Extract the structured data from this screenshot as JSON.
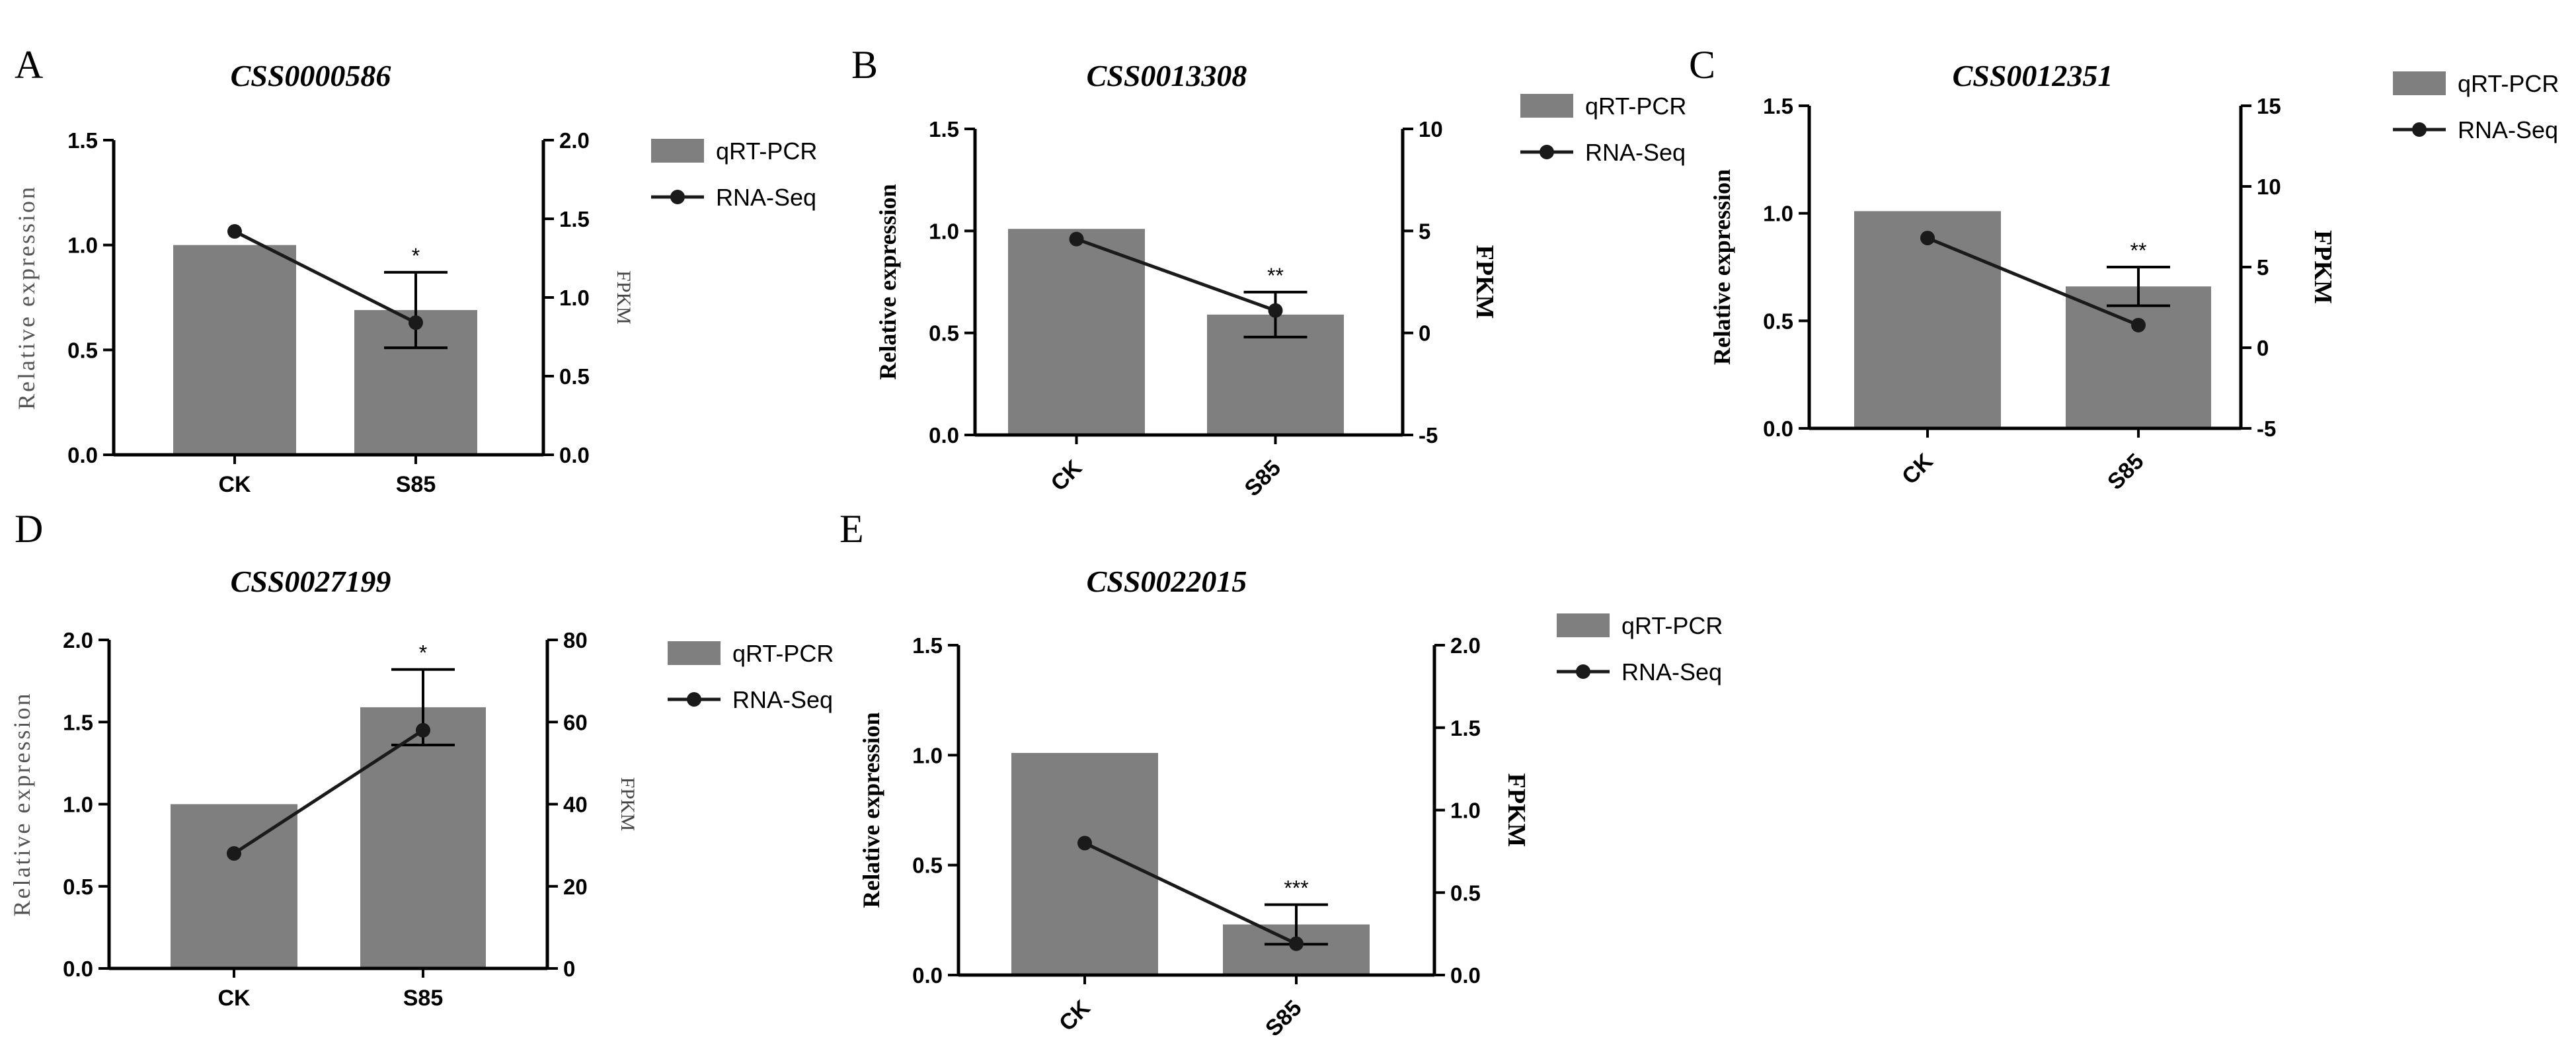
{
  "figure": {
    "colors": {
      "bar": "#7f7f7f",
      "line": "#1a1a1a",
      "axis": "#000000",
      "text": "#000000"
    },
    "legend_labels": {
      "bar": "qRT-PCR",
      "line": "RNA-Seq"
    }
  },
  "chart_data": [
    {
      "panel": "A",
      "type": "bar",
      "title": "CSS0000586",
      "categories": [
        "CK",
        "S85"
      ],
      "xlabel": "",
      "ylabel": "Relative expression",
      "ylabel2": "FPKM",
      "ylim": [
        0,
        1.5
      ],
      "y_ticks": [
        "0.0",
        "0.5",
        "1.0",
        "1.5"
      ],
      "y2lim": [
        0,
        2
      ],
      "y2_ticks": [
        "0.0",
        "0.5",
        "1.0",
        "1.5",
        "2.0"
      ],
      "series": [
        {
          "name": "qRT-PCR",
          "type": "bar",
          "axis": "left",
          "values": [
            1.0,
            0.69
          ],
          "error": [
            0,
            0.18
          ],
          "significance": [
            "",
            "*"
          ]
        },
        {
          "name": "RNA-Seq",
          "type": "line",
          "axis": "right",
          "values": [
            1.42,
            0.84
          ]
        }
      ]
    },
    {
      "panel": "B",
      "type": "bar",
      "title": "CSS0013308",
      "categories": [
        "CK",
        "S85"
      ],
      "xlabel": "",
      "ylabel": "Relative expression",
      "ylabel2": "FPKM",
      "ylim": [
        0,
        1.5
      ],
      "y_ticks": [
        "0.0",
        "0.5",
        "1.0",
        "1.5"
      ],
      "y2lim": [
        -5,
        10
      ],
      "y2_ticks": [
        "-5",
        "0",
        "5",
        "10"
      ],
      "series": [
        {
          "name": "qRT-PCR",
          "type": "bar",
          "axis": "left",
          "values": [
            1.01,
            0.59
          ],
          "error": [
            0,
            0.11
          ],
          "significance": [
            "",
            "**"
          ]
        },
        {
          "name": "RNA-Seq",
          "type": "line",
          "axis": "right",
          "values": [
            4.6,
            1.1
          ]
        }
      ]
    },
    {
      "panel": "C",
      "type": "bar",
      "title": "CSS0012351",
      "categories": [
        "CK",
        "S85"
      ],
      "xlabel": "",
      "ylabel": "Relative expression",
      "ylabel2": "FPKM",
      "ylim": [
        0,
        1.5
      ],
      "y_ticks": [
        "0.0",
        "0.5",
        "1.0",
        "1.5"
      ],
      "y2lim": [
        -5,
        15
      ],
      "y2_ticks": [
        "-5",
        "0",
        "5",
        "10",
        "15"
      ],
      "series": [
        {
          "name": "qRT-PCR",
          "type": "bar",
          "axis": "left",
          "values": [
            1.01,
            0.66
          ],
          "error": [
            0,
            0.09
          ],
          "significance": [
            "",
            "**"
          ]
        },
        {
          "name": "RNA-Seq",
          "type": "line",
          "axis": "right",
          "values": [
            6.8,
            1.4
          ]
        }
      ]
    },
    {
      "panel": "D",
      "type": "bar",
      "title": "CSS0027199",
      "categories": [
        "CK",
        "S85"
      ],
      "xlabel": "",
      "ylabel": "Relative expression",
      "ylabel2": "FPKM",
      "ylim": [
        0,
        2
      ],
      "y_ticks": [
        "0.0",
        "0.5",
        "1.0",
        "1.5",
        "2.0"
      ],
      "y2lim": [
        0,
        80
      ],
      "y2_ticks": [
        "0",
        "20",
        "40",
        "60",
        "80"
      ],
      "series": [
        {
          "name": "qRT-PCR",
          "type": "bar",
          "axis": "left",
          "values": [
            1.0,
            1.59
          ],
          "error": [
            0,
            0.23
          ],
          "significance": [
            "",
            "*"
          ]
        },
        {
          "name": "RNA-Seq",
          "type": "line",
          "axis": "right",
          "values": [
            28,
            58
          ]
        }
      ]
    },
    {
      "panel": "E",
      "type": "bar",
      "title": "CSS0022015",
      "categories": [
        "CK",
        "S85"
      ],
      "xlabel": "",
      "ylabel": "Relative expression",
      "ylabel2": "FPKM",
      "ylim": [
        0,
        1.5
      ],
      "y_ticks": [
        "0.0",
        "0.5",
        "1.0",
        "1.5"
      ],
      "y2lim": [
        0,
        2
      ],
      "y2_ticks": [
        "0.0",
        "0.5",
        "1.0",
        "1.5",
        "2.0"
      ],
      "series": [
        {
          "name": "qRT-PCR",
          "type": "bar",
          "axis": "left",
          "values": [
            1.01,
            0.23
          ],
          "error": [
            0,
            0.09
          ],
          "significance": [
            "",
            "***"
          ]
        },
        {
          "name": "RNA-Seq",
          "type": "line",
          "axis": "right",
          "values": [
            0.8,
            0.19
          ]
        }
      ]
    }
  ]
}
